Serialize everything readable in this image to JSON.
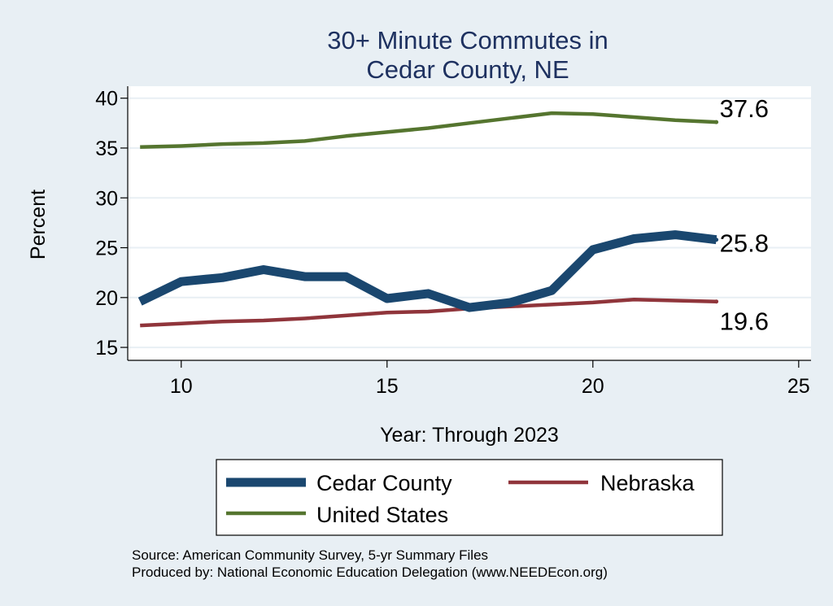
{
  "chart_data": {
    "type": "line",
    "title_lines": [
      "30+ Minute Commutes in",
      "Cedar County, NE"
    ],
    "xlabel": "Year: Through 2023",
    "ylabel": "Percent",
    "xlim": [
      8.7,
      25.3
    ],
    "ylim": [
      13.7,
      41.2
    ],
    "xticks": [
      10,
      15,
      20,
      25
    ],
    "yticks": [
      15,
      20,
      25,
      30,
      35,
      40
    ],
    "grid": true,
    "x": [
      9,
      10,
      11,
      12,
      13,
      14,
      15,
      16,
      17,
      18,
      19,
      20,
      21,
      22,
      23
    ],
    "series": [
      {
        "name": "Cedar County",
        "color": "#1a476f",
        "width": "thick",
        "values": [
          19.6,
          21.6,
          22.0,
          22.8,
          22.1,
          22.1,
          19.9,
          20.4,
          19.0,
          19.5,
          20.7,
          24.8,
          25.9,
          26.3,
          25.8
        ],
        "end_label": "25.8"
      },
      {
        "name": "Nebraska",
        "color": "#90353b",
        "width": "medium",
        "values": [
          17.2,
          17.4,
          17.6,
          17.7,
          17.9,
          18.2,
          18.5,
          18.6,
          18.9,
          19.1,
          19.3,
          19.5,
          19.8,
          19.7,
          19.6
        ],
        "end_label": "19.6"
      },
      {
        "name": "United States",
        "color": "#55752f",
        "width": "medium",
        "values": [
          35.1,
          35.2,
          35.4,
          35.5,
          35.7,
          36.2,
          36.6,
          37.0,
          37.5,
          38.0,
          38.5,
          38.4,
          38.1,
          37.8,
          37.6
        ],
        "end_label": "37.6"
      }
    ],
    "legend": {
      "position": "bottom",
      "entries": [
        "Cedar County",
        "Nebraska",
        "United States"
      ]
    },
    "notes": [
      "Source: American Community Survey, 5-yr Summary Files",
      "Produced by: National Economic Education Delegation (www.NEEDEcon.org)"
    ]
  }
}
